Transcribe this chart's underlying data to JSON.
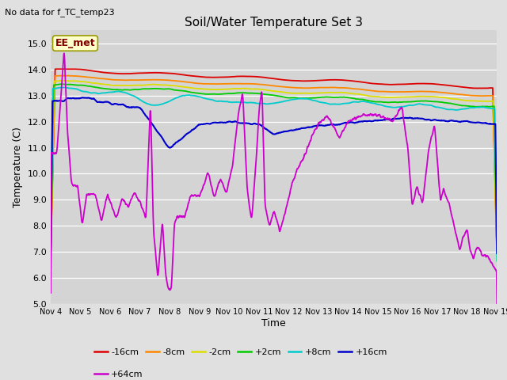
{
  "title": "Soil/Water Temperature Set 3",
  "subtitle": "No data for f_TC_temp23",
  "ylabel": "Temperature (C)",
  "xlabel": "Time",
  "ylim": [
    5.0,
    15.5
  ],
  "yticks": [
    5.0,
    6.0,
    7.0,
    8.0,
    9.0,
    10.0,
    11.0,
    12.0,
    13.0,
    14.0,
    15.0
  ],
  "fig_bg": "#e0e0e0",
  "plot_bg": "#d4d4d4",
  "annotation_text": "EE_met",
  "annotation_box_color": "#ffffcc",
  "annotation_text_color": "#800000",
  "series": [
    {
      "label": "-16cm",
      "color": "#dd0000",
      "lw": 1.3
    },
    {
      "label": "-8cm",
      "color": "#ff8800",
      "lw": 1.3
    },
    {
      "label": "-2cm",
      "color": "#dddd00",
      "lw": 1.3
    },
    {
      "label": "+2cm",
      "color": "#00cc00",
      "lw": 1.3
    },
    {
      "label": "+8cm",
      "color": "#00cccc",
      "lw": 1.3
    },
    {
      "label": "+16cm",
      "color": "#0000cc",
      "lw": 1.5
    },
    {
      "label": "+64cm",
      "color": "#cc00cc",
      "lw": 1.3
    }
  ],
  "x_start": 4,
  "x_end": 19,
  "x_ticks": [
    4,
    5,
    6,
    7,
    8,
    9,
    10,
    11,
    12,
    13,
    14,
    15,
    16,
    17,
    18,
    19
  ],
  "x_tick_labels": [
    "Nov 4",
    "Nov 5",
    "Nov 6",
    "Nov 7",
    "Nov 8",
    "Nov 9",
    "Nov 10",
    "Nov 11",
    "Nov 12",
    "Nov 13",
    "Nov 14",
    "Nov 15",
    "Nov 16",
    "Nov 17",
    "Nov 18",
    "Nov 19"
  ]
}
